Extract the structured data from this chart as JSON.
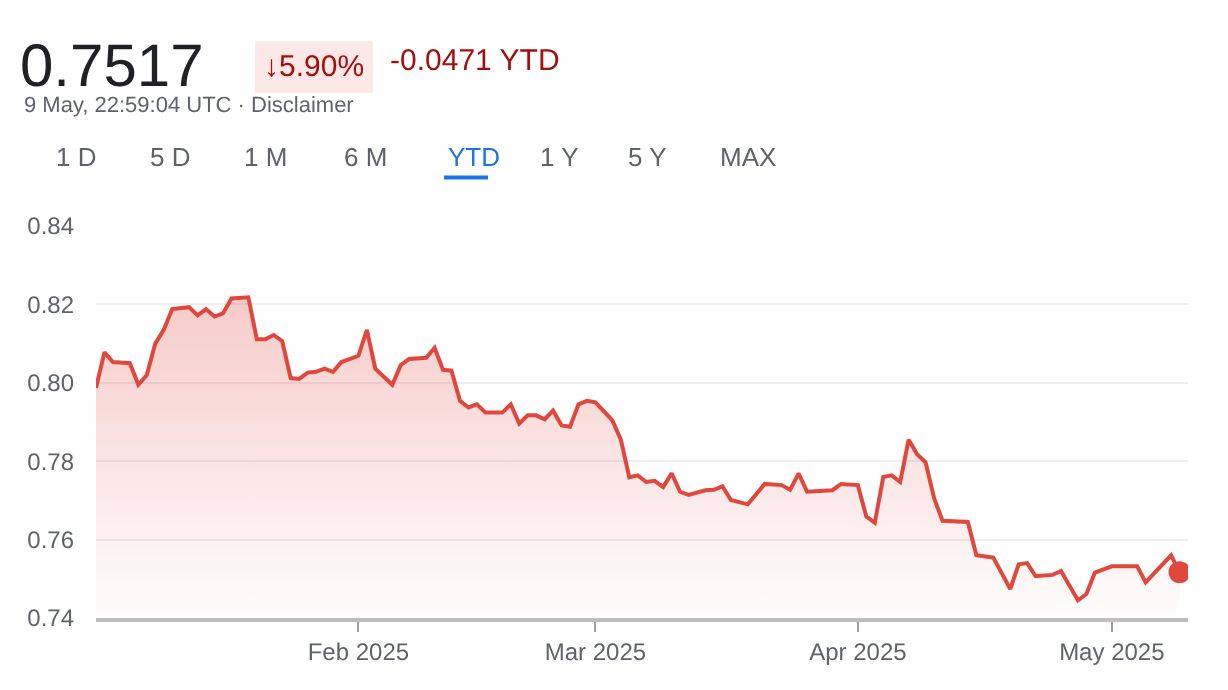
{
  "chart_data": {
    "type": "area",
    "annotations": [
      "0.7517",
      "↓5.90%",
      "-0.0471 YTD",
      "9 May, 22:59:04 UTC · Disclaimer",
      "1 D",
      "5 D",
      "1 M",
      "6 M",
      "YTD",
      "1 Y",
      "5 Y",
      "MAX"
    ],
    "xlim": [
      "2025-01-01",
      "2025-05-10"
    ],
    "xticks": [
      {
        "value": "2025-02-01",
        "label": "Feb 2025"
      },
      {
        "value": "2025-03-01",
        "label": "Mar 2025"
      },
      {
        "value": "2025-04-01",
        "label": "Apr 2025"
      },
      {
        "value": "2025-05-01",
        "label": "May 2025"
      }
    ],
    "ylim": [
      0.74,
      0.84
    ],
    "yticks": [
      {
        "value": 0.74,
        "label": "0.74"
      },
      {
        "value": 0.76,
        "label": "0.76"
      },
      {
        "value": 0.78,
        "label": "0.78"
      },
      {
        "value": 0.8,
        "label": "0.80"
      },
      {
        "value": 0.82,
        "label": "0.82"
      },
      {
        "value": 0.84,
        "label": "0.84"
      }
    ],
    "grid": "y",
    "legend": false,
    "series": [
      {
        "color": "#e0483e",
        "marker": "none",
        "line_style": "solid",
        "x": [
          "2025-01-01",
          "2025-01-02",
          "2025-01-03",
          "2025-01-05",
          "2025-01-06",
          "2025-01-07",
          "2025-01-08",
          "2025-01-09",
          "2025-01-10",
          "2025-01-12",
          "2025-01-13",
          "2025-01-14",
          "2025-01-15",
          "2025-01-16",
          "2025-01-17",
          "2025-01-19",
          "2025-01-20",
          "2025-01-21",
          "2025-01-22",
          "2025-01-23",
          "2025-01-24",
          "2025-01-25",
          "2025-01-26",
          "2025-01-27",
          "2025-01-28",
          "2025-01-29",
          "2025-01-30",
          "2025-02-01",
          "2025-02-02",
          "2025-02-03",
          "2025-02-05",
          "2025-02-06",
          "2025-02-07",
          "2025-02-09",
          "2025-02-10",
          "2025-02-11",
          "2025-02-12",
          "2025-02-13",
          "2025-02-14",
          "2025-02-15",
          "2025-02-16",
          "2025-02-18",
          "2025-02-19",
          "2025-02-20",
          "2025-02-21",
          "2025-02-22",
          "2025-02-23",
          "2025-02-24",
          "2025-02-25",
          "2025-02-26",
          "2025-02-27",
          "2025-02-28",
          "2025-03-01",
          "2025-03-03",
          "2025-03-04",
          "2025-03-05",
          "2025-03-06",
          "2025-03-07",
          "2025-03-08",
          "2025-03-09",
          "2025-03-10",
          "2025-03-11",
          "2025-03-12",
          "2025-03-14",
          "2025-03-15",
          "2025-03-16",
          "2025-03-17",
          "2025-03-19",
          "2025-03-21",
          "2025-03-23",
          "2025-03-24",
          "2025-03-25",
          "2025-03-26",
          "2025-03-29",
          "2025-03-30",
          "2025-04-01",
          "2025-04-02",
          "2025-04-03",
          "2025-04-04",
          "2025-04-05",
          "2025-04-06",
          "2025-04-07",
          "2025-04-08",
          "2025-04-09",
          "2025-04-10",
          "2025-04-11",
          "2025-04-14",
          "2025-04-15",
          "2025-04-17",
          "2025-04-19",
          "2025-04-20",
          "2025-04-21",
          "2025-04-22",
          "2025-04-24",
          "2025-04-25",
          "2025-04-27",
          "2025-04-28",
          "2025-04-29",
          "2025-05-01",
          "2025-05-04",
          "2025-05-05",
          "2025-05-08",
          "2025-05-09"
        ],
        "values": [
          0.7987,
          0.8078,
          0.8053,
          0.805,
          0.7995,
          0.802,
          0.81,
          0.8135,
          0.8188,
          0.8193,
          0.8172,
          0.8188,
          0.8169,
          0.8177,
          0.8215,
          0.8218,
          0.8111,
          0.8111,
          0.8122,
          0.8106,
          0.8012,
          0.801,
          0.8026,
          0.8028,
          0.8036,
          0.8028,
          0.8053,
          0.8069,
          0.8135,
          0.8036,
          0.7995,
          0.8045,
          0.8061,
          0.8064,
          0.8089,
          0.8033,
          0.8031,
          0.7954,
          0.7937,
          0.7945,
          0.7924,
          0.7924,
          0.7945,
          0.7896,
          0.7917,
          0.7917,
          0.7907,
          0.7929,
          0.7891,
          0.7888,
          0.7945,
          0.7954,
          0.795,
          0.7904,
          0.7855,
          0.7759,
          0.7764,
          0.7747,
          0.775,
          0.7734,
          0.7769,
          0.7722,
          0.7714,
          0.7726,
          0.7727,
          0.7736,
          0.7701,
          0.769,
          0.7742,
          0.7739,
          0.7727,
          0.7769,
          0.7722,
          0.7726,
          0.7742,
          0.7739,
          0.7659,
          0.7643,
          0.776,
          0.7764,
          0.7747,
          0.7855,
          0.7818,
          0.7797,
          0.7706,
          0.7648,
          0.7645,
          0.756,
          0.7554,
          0.7474,
          0.7537,
          0.754,
          0.7507,
          0.751,
          0.752,
          0.7445,
          0.7461,
          0.7516,
          0.7532,
          0.7532,
          0.7491,
          0.756,
          0.7517
        ]
      },
      {
        "type": "scatter",
        "color": "#e0483e",
        "marker": "circle",
        "x": [
          "2025-05-09"
        ],
        "values": [
          0.7517
        ]
      }
    ]
  }
}
